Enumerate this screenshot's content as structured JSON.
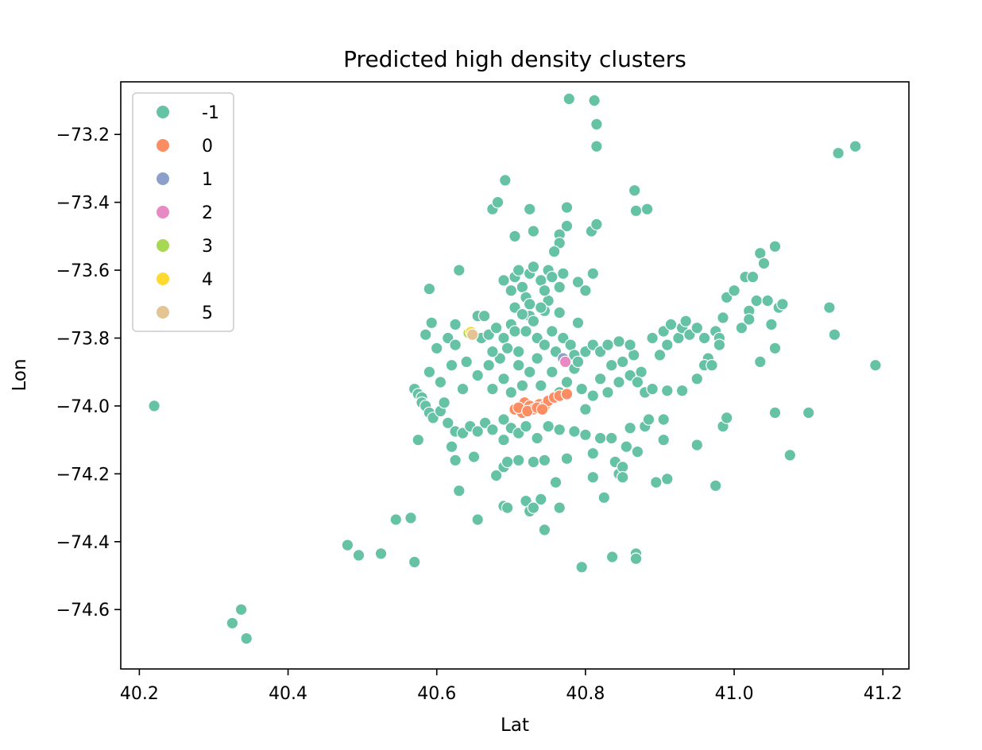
{
  "chart_data": {
    "type": "scatter",
    "title": "Predicted high density clusters",
    "xlabel": "Lat",
    "ylabel": "Lon",
    "xlim": [
      40.175,
      41.235
    ],
    "ylim": [
      -74.775,
      -73.045
    ],
    "xticks": [
      40.2,
      40.4,
      40.6,
      40.8,
      41.0,
      41.2
    ],
    "yticks": [
      -74.6,
      -74.4,
      -74.2,
      -74.0,
      -73.8,
      -73.6,
      -73.4,
      -73.2
    ],
    "xtick_labels": [
      "40.2",
      "40.4",
      "40.6",
      "40.8",
      "41.0",
      "41.2"
    ],
    "ytick_labels": [
      "−74.6",
      "−74.4",
      "−74.2",
      "−74.0",
      "−73.8",
      "−73.6",
      "−73.4",
      "−73.2"
    ],
    "grid": false,
    "legend_position": "top-left",
    "series": [
      {
        "name": "-1",
        "color": "#66c2a5",
        "points": [
          [
            40.22,
            -74.0
          ],
          [
            40.325,
            -74.64
          ],
          [
            40.337,
            -74.6
          ],
          [
            40.344,
            -74.685
          ],
          [
            40.48,
            -74.41
          ],
          [
            40.495,
            -74.44
          ],
          [
            40.525,
            -74.435
          ],
          [
            40.545,
            -74.335
          ],
          [
            40.565,
            -74.33
          ],
          [
            40.57,
            -74.46
          ],
          [
            40.63,
            -74.25
          ],
          [
            40.655,
            -74.335
          ],
          [
            40.69,
            -74.295
          ],
          [
            40.695,
            -74.3
          ],
          [
            40.72,
            -74.28
          ],
          [
            40.725,
            -74.31
          ],
          [
            40.73,
            -74.3
          ],
          [
            40.74,
            -74.275
          ],
          [
            40.745,
            -74.365
          ],
          [
            40.765,
            -74.3
          ],
          [
            40.795,
            -74.475
          ],
          [
            40.836,
            -74.445
          ],
          [
            40.868,
            -74.435
          ],
          [
            40.868,
            -74.45
          ],
          [
            40.778,
            -73.095
          ],
          [
            40.812,
            -73.1
          ],
          [
            40.815,
            -73.17
          ],
          [
            40.815,
            -73.235
          ],
          [
            41.14,
            -73.255
          ],
          [
            41.163,
            -73.235
          ],
          [
            41.19,
            -73.88
          ],
          [
            41.128,
            -73.71
          ],
          [
            41.135,
            -73.79
          ],
          [
            41.1,
            -74.02
          ],
          [
            41.075,
            -74.145
          ],
          [
            41.055,
            -74.02
          ],
          [
            40.692,
            -73.335
          ],
          [
            40.675,
            -73.42
          ],
          [
            40.682,
            -73.4
          ],
          [
            40.725,
            -73.42
          ],
          [
            40.73,
            -73.485
          ],
          [
            40.775,
            -73.415
          ],
          [
            40.775,
            -73.47
          ],
          [
            40.765,
            -73.495
          ],
          [
            40.765,
            -73.52
          ],
          [
            40.808,
            -73.485
          ],
          [
            40.815,
            -73.465
          ],
          [
            40.866,
            -73.365
          ],
          [
            40.868,
            -73.425
          ],
          [
            40.883,
            -73.42
          ],
          [
            40.705,
            -73.5
          ],
          [
            40.758,
            -73.545
          ],
          [
            40.81,
            -73.61
          ],
          [
            40.59,
            -73.655
          ],
          [
            40.63,
            -73.6
          ],
          [
            40.75,
            -73.69
          ],
          [
            40.79,
            -73.635
          ],
          [
            40.8,
            -73.66
          ],
          [
            40.585,
            -73.79
          ],
          [
            40.593,
            -73.755
          ],
          [
            40.625,
            -73.76
          ],
          [
            40.655,
            -73.735
          ],
          [
            40.664,
            -73.735
          ],
          [
            40.725,
            -73.735
          ],
          [
            40.745,
            -73.72
          ],
          [
            40.765,
            -73.725
          ],
          [
            40.79,
            -73.755
          ],
          [
            40.57,
            -73.95
          ],
          [
            40.575,
            -73.965
          ],
          [
            40.58,
            -73.975
          ],
          [
            40.58,
            -73.99
          ],
          [
            40.585,
            -74.0
          ],
          [
            40.59,
            -74.02
          ],
          [
            40.595,
            -74.035
          ],
          [
            40.605,
            -74.015
          ],
          [
            40.61,
            -73.99
          ],
          [
            40.615,
            -74.05
          ],
          [
            40.625,
            -74.075
          ],
          [
            40.635,
            -74.08
          ],
          [
            40.645,
            -74.06
          ],
          [
            40.655,
            -74.075
          ],
          [
            40.665,
            -74.05
          ],
          [
            40.675,
            -74.07
          ],
          [
            40.69,
            -74.1
          ],
          [
            40.69,
            -74.04
          ],
          [
            40.7,
            -74.065
          ],
          [
            40.71,
            -74.08
          ],
          [
            40.72,
            -74.06
          ],
          [
            40.735,
            -74.095
          ],
          [
            40.75,
            -74.06
          ],
          [
            40.765,
            -74.07
          ],
          [
            40.785,
            -74.075
          ],
          [
            40.8,
            -74.085
          ],
          [
            40.82,
            -74.095
          ],
          [
            40.59,
            -73.9
          ],
          [
            40.605,
            -73.93
          ],
          [
            40.62,
            -73.88
          ],
          [
            40.635,
            -73.95
          ],
          [
            40.64,
            -73.87
          ],
          [
            40.655,
            -73.91
          ],
          [
            40.67,
            -73.88
          ],
          [
            40.675,
            -73.95
          ],
          [
            40.685,
            -73.86
          ],
          [
            40.69,
            -73.92
          ],
          [
            40.7,
            -73.96
          ],
          [
            40.71,
            -73.88
          ],
          [
            40.715,
            -73.94
          ],
          [
            40.725,
            -73.9
          ],
          [
            40.735,
            -73.86
          ],
          [
            40.74,
            -73.94
          ],
          [
            40.755,
            -73.9
          ],
          [
            40.765,
            -73.96
          ],
          [
            40.775,
            -73.93
          ],
          [
            40.785,
            -73.89
          ],
          [
            40.795,
            -73.95
          ],
          [
            40.8,
            -74.01
          ],
          [
            40.81,
            -73.97
          ],
          [
            40.82,
            -73.92
          ],
          [
            40.83,
            -73.96
          ],
          [
            40.835,
            -73.88
          ],
          [
            40.845,
            -73.93
          ],
          [
            40.85,
            -73.87
          ],
          [
            40.86,
            -73.91
          ],
          [
            40.865,
            -73.85
          ],
          [
            40.875,
            -73.9
          ],
          [
            40.6,
            -73.83
          ],
          [
            40.615,
            -73.8
          ],
          [
            40.625,
            -73.82
          ],
          [
            40.66,
            -73.8
          ],
          [
            40.67,
            -73.79
          ],
          [
            40.675,
            -73.84
          ],
          [
            40.68,
            -73.77
          ],
          [
            40.69,
            -73.8
          ],
          [
            40.695,
            -73.83
          ],
          [
            40.7,
            -73.76
          ],
          [
            40.705,
            -73.78
          ],
          [
            40.71,
            -73.84
          ],
          [
            40.72,
            -73.78
          ],
          [
            40.73,
            -73.75
          ],
          [
            40.735,
            -73.8
          ],
          [
            40.745,
            -73.82
          ],
          [
            40.755,
            -73.78
          ],
          [
            40.76,
            -73.84
          ],
          [
            40.77,
            -73.8
          ],
          [
            40.78,
            -73.82
          ],
          [
            40.785,
            -73.85
          ],
          [
            40.79,
            -73.87
          ],
          [
            40.8,
            -73.84
          ],
          [
            40.81,
            -73.82
          ],
          [
            40.82,
            -73.84
          ],
          [
            40.83,
            -73.82
          ],
          [
            40.845,
            -73.81
          ],
          [
            40.86,
            -73.82
          ],
          [
            40.69,
            -73.63
          ],
          [
            40.7,
            -73.66
          ],
          [
            40.705,
            -73.62
          ],
          [
            40.71,
            -73.6
          ],
          [
            40.715,
            -73.65
          ],
          [
            40.72,
            -73.68
          ],
          [
            40.725,
            -73.61
          ],
          [
            40.73,
            -73.59
          ],
          [
            40.74,
            -73.63
          ],
          [
            40.745,
            -73.66
          ],
          [
            40.75,
            -73.6
          ],
          [
            40.755,
            -73.62
          ],
          [
            40.765,
            -73.65
          ],
          [
            40.77,
            -73.61
          ],
          [
            40.705,
            -73.71
          ],
          [
            40.715,
            -73.73
          ],
          [
            40.74,
            -73.71
          ],
          [
            40.725,
            -73.7
          ],
          [
            40.89,
            -73.8
          ],
          [
            40.9,
            -73.85
          ],
          [
            40.905,
            -73.78
          ],
          [
            40.91,
            -73.82
          ],
          [
            40.915,
            -73.76
          ],
          [
            40.925,
            -73.8
          ],
          [
            40.93,
            -73.77
          ],
          [
            40.935,
            -73.75
          ],
          [
            40.94,
            -73.79
          ],
          [
            40.95,
            -73.77
          ],
          [
            40.96,
            -73.8
          ],
          [
            40.965,
            -73.86
          ],
          [
            40.975,
            -73.78
          ],
          [
            40.98,
            -73.8
          ],
          [
            40.985,
            -73.74
          ],
          [
            40.99,
            -73.68
          ],
          [
            41.0,
            -73.66
          ],
          [
            41.01,
            -73.77
          ],
          [
            41.015,
            -73.62
          ],
          [
            41.02,
            -73.72
          ],
          [
            41.025,
            -73.62
          ],
          [
            41.03,
            -73.69
          ],
          [
            41.035,
            -73.55
          ],
          [
            41.04,
            -73.58
          ],
          [
            41.045,
            -73.69
          ],
          [
            41.05,
            -73.76
          ],
          [
            41.055,
            -73.53
          ],
          [
            41.06,
            -73.71
          ],
          [
            41.065,
            -73.7
          ],
          [
            41.035,
            -73.87
          ],
          [
            41.055,
            -73.83
          ],
          [
            41.02,
            -73.745
          ],
          [
            40.87,
            -73.93
          ],
          [
            40.88,
            -73.96
          ],
          [
            40.89,
            -73.95
          ],
          [
            40.91,
            -73.955
          ],
          [
            40.93,
            -73.955
          ],
          [
            40.95,
            -73.92
          ],
          [
            40.96,
            -73.88
          ],
          [
            40.97,
            -73.88
          ],
          [
            40.98,
            -73.82
          ],
          [
            40.86,
            -74.065
          ],
          [
            40.88,
            -74.06
          ],
          [
            40.885,
            -74.04
          ],
          [
            40.905,
            -74.04
          ],
          [
            40.905,
            -74.1
          ],
          [
            40.95,
            -74.115
          ],
          [
            40.985,
            -74.06
          ],
          [
            40.99,
            -74.035
          ],
          [
            40.835,
            -74.095
          ],
          [
            40.84,
            -74.165
          ],
          [
            40.845,
            -74.2
          ],
          [
            40.85,
            -74.18
          ],
          [
            40.85,
            -74.21
          ],
          [
            40.855,
            -74.12
          ],
          [
            40.87,
            -74.135
          ],
          [
            40.895,
            -74.225
          ],
          [
            40.91,
            -74.215
          ],
          [
            40.975,
            -74.235
          ],
          [
            40.81,
            -74.14
          ],
          [
            40.81,
            -74.21
          ],
          [
            40.825,
            -74.27
          ],
          [
            40.68,
            -74.205
          ],
          [
            40.69,
            -74.18
          ],
          [
            40.695,
            -74.165
          ],
          [
            40.71,
            -74.16
          ],
          [
            40.73,
            -74.165
          ],
          [
            40.745,
            -74.16
          ],
          [
            40.76,
            -74.225
          ],
          [
            40.775,
            -74.155
          ],
          [
            40.65,
            -74.15
          ],
          [
            40.625,
            -74.16
          ],
          [
            40.575,
            -74.1
          ],
          [
            40.62,
            -74.12
          ]
        ]
      },
      {
        "name": "0",
        "color": "#fc8d62",
        "points": [
          [
            40.705,
            -74.01
          ],
          [
            40.715,
            -74.02
          ],
          [
            40.718,
            -73.99
          ],
          [
            40.725,
            -74.0
          ],
          [
            40.73,
            -74.01
          ],
          [
            40.738,
            -73.995
          ],
          [
            40.745,
            -74.0
          ],
          [
            40.75,
            -73.985
          ],
          [
            40.758,
            -73.975
          ],
          [
            40.765,
            -73.97
          ],
          [
            40.775,
            -73.965
          ],
          [
            40.71,
            -74.005
          ],
          [
            40.722,
            -74.015
          ],
          [
            40.735,
            -74.005
          ],
          [
            40.742,
            -74.01
          ]
        ]
      },
      {
        "name": "1",
        "color": "#8da0cb",
        "points": [
          [
            40.77,
            -73.86
          ]
        ]
      },
      {
        "name": "2",
        "color": "#e78ac3",
        "points": [
          [
            40.773,
            -73.87
          ]
        ]
      },
      {
        "name": "3",
        "color": "#a6d854",
        "points": [
          [
            40.643,
            -73.785
          ]
        ]
      },
      {
        "name": "4",
        "color": "#ffd92f",
        "points": [
          [
            40.646,
            -73.782
          ]
        ]
      },
      {
        "name": "5",
        "color": "#e5c494",
        "points": [
          [
            40.648,
            -73.79
          ]
        ]
      }
    ]
  }
}
